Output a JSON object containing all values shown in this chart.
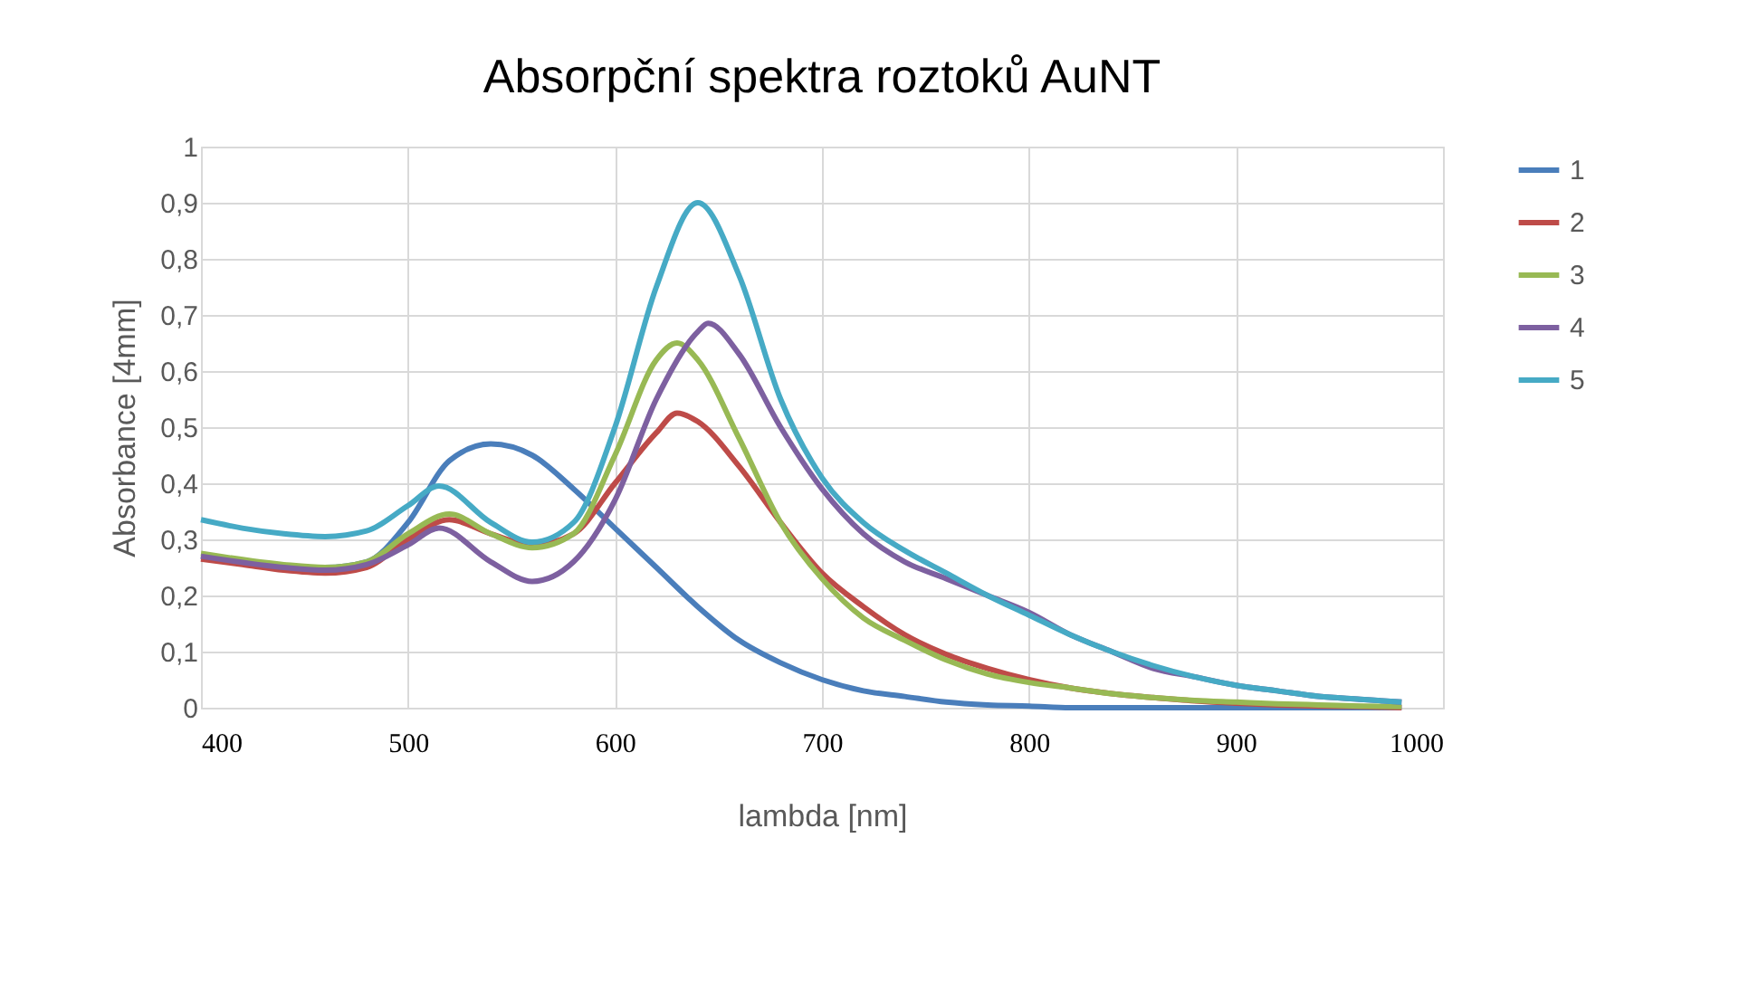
{
  "chart_data": {
    "type": "line",
    "title": "Absorpční spektra roztoků AuNT",
    "xlabel": "lambda [nm]",
    "ylabel": "Absorbance [4mm]",
    "xlim": [
      400,
      1000
    ],
    "xticks": [
      400,
      500,
      600,
      700,
      800,
      900,
      1000
    ],
    "ylim": [
      0,
      1
    ],
    "yticks": [
      0,
      {
        "value": 0.1,
        "label": "0,1"
      },
      {
        "value": 0.2,
        "label": "0,2"
      },
      {
        "value": 0.3,
        "label": "0,3"
      },
      {
        "value": 0.4,
        "label": "0,4"
      },
      {
        "value": 0.5,
        "label": "0,5"
      },
      {
        "value": 0.6,
        "label": "0,6"
      },
      {
        "value": 0.7,
        "label": "0,7"
      },
      {
        "value": 0.8,
        "label": "0,8"
      },
      {
        "value": 0.9,
        "label": "0,9"
      },
      1
    ],
    "grid": true,
    "legend": "right",
    "marker": "none",
    "line_style": "solid",
    "series": [
      {
        "name": "1",
        "color": "#4a7ebb",
        "x": [
          400,
          420,
          440,
          460,
          480,
          500,
          520,
          540,
          560,
          580,
          600,
          620,
          640,
          660,
          680,
          700,
          720,
          740,
          760,
          780,
          800,
          820,
          860,
          900,
          940,
          980
        ],
        "values": [
          0.27,
          0.26,
          0.25,
          0.25,
          0.26,
          0.33,
          0.44,
          0.47,
          0.45,
          0.39,
          0.32,
          0.25,
          0.18,
          0.12,
          0.08,
          0.05,
          0.03,
          0.02,
          0.01,
          0.005,
          0.003,
          0,
          0,
          0,
          0,
          0
        ]
      },
      {
        "name": "2",
        "color": "#be4b48",
        "x": [
          400,
          420,
          440,
          460,
          480,
          500,
          520,
          540,
          560,
          580,
          600,
          620,
          630,
          640,
          660,
          680,
          700,
          720,
          740,
          760,
          780,
          800,
          820,
          840,
          860,
          880,
          900,
          920,
          940,
          960,
          980
        ],
        "values": [
          0.265,
          0.255,
          0.245,
          0.24,
          0.25,
          0.3,
          0.335,
          0.31,
          0.29,
          0.31,
          0.4,
          0.49,
          0.525,
          0.51,
          0.43,
          0.33,
          0.24,
          0.18,
          0.13,
          0.095,
          0.07,
          0.05,
          0.035,
          0.025,
          0.018,
          0.012,
          0.008,
          0.005,
          0.003,
          0.002,
          0
        ]
      },
      {
        "name": "3",
        "color": "#98b954",
        "x": [
          400,
          440,
          460,
          480,
          500,
          520,
          540,
          560,
          580,
          600,
          620,
          630,
          640,
          660,
          680,
          700,
          720,
          740,
          760,
          780,
          800,
          820,
          840,
          860,
          880,
          900,
          920,
          940,
          960,
          980
        ],
        "values": [
          0.275,
          0.255,
          0.25,
          0.26,
          0.31,
          0.345,
          0.31,
          0.285,
          0.31,
          0.45,
          0.62,
          0.65,
          0.62,
          0.48,
          0.33,
          0.23,
          0.16,
          0.12,
          0.085,
          0.06,
          0.045,
          0.035,
          0.025,
          0.018,
          0.013,
          0.01,
          0.007,
          0.005,
          0.003,
          0.002
        ]
      },
      {
        "name": "4",
        "color": "#7d60a0",
        "x": [
          400,
          440,
          460,
          480,
          500,
          515,
          540,
          560,
          580,
          600,
          620,
          640,
          645,
          660,
          680,
          700,
          720,
          740,
          760,
          780,
          800,
          820,
          840,
          860,
          880,
          900,
          920,
          940,
          960,
          980
        ],
        "values": [
          0.27,
          0.25,
          0.245,
          0.255,
          0.29,
          0.32,
          0.26,
          0.225,
          0.26,
          0.37,
          0.55,
          0.67,
          0.685,
          0.63,
          0.5,
          0.39,
          0.31,
          0.26,
          0.23,
          0.2,
          0.17,
          0.13,
          0.1,
          0.07,
          0.055,
          0.04,
          0.03,
          0.02,
          0.015,
          0.01
        ]
      },
      {
        "name": "5",
        "color": "#46aac5",
        "x": [
          400,
          420,
          440,
          460,
          480,
          500,
          515,
          540,
          560,
          580,
          600,
          620,
          640,
          660,
          680,
          700,
          720,
          740,
          760,
          780,
          800,
          820,
          840,
          860,
          880,
          900,
          920,
          940,
          960,
          980
        ],
        "values": [
          0.335,
          0.32,
          0.31,
          0.305,
          0.315,
          0.36,
          0.395,
          0.33,
          0.295,
          0.33,
          0.5,
          0.75,
          0.9,
          0.77,
          0.55,
          0.41,
          0.33,
          0.28,
          0.24,
          0.2,
          0.165,
          0.13,
          0.1,
          0.075,
          0.055,
          0.04,
          0.03,
          0.02,
          0.015,
          0.01
        ]
      }
    ]
  }
}
